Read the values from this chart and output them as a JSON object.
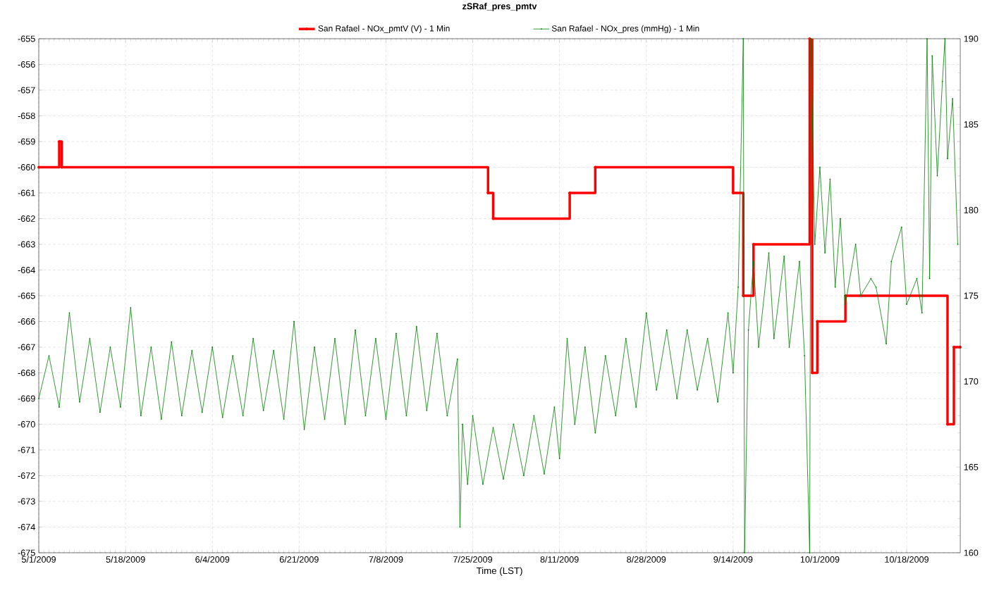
{
  "chart_data": {
    "type": "line",
    "title": "zSRaf_pres_pmtv",
    "xlabel": "Time (LST)",
    "xlim": [
      "2009-05-01",
      "2009-10-28T12:00"
    ],
    "xticks": [
      {
        "value": "2009-05-01",
        "label": "5/1/2009"
      },
      {
        "value": "2009-05-18",
        "label": "5/18/2009"
      },
      {
        "value": "2009-06-04",
        "label": "6/4/2009"
      },
      {
        "value": "2009-06-21",
        "label": "6/21/2009"
      },
      {
        "value": "2009-07-08",
        "label": "7/8/2009"
      },
      {
        "value": "2009-07-25",
        "label": "7/25/2009"
      },
      {
        "value": "2009-08-11",
        "label": "8/11/2009"
      },
      {
        "value": "2009-08-28",
        "label": "8/28/2009"
      },
      {
        "value": "2009-09-14",
        "label": "9/14/2009"
      },
      {
        "value": "2009-10-01",
        "label": "10/1/2009"
      },
      {
        "value": "2009-10-18",
        "label": "10/18/2009"
      }
    ],
    "ylim": [
      -675,
      -655
    ],
    "yticks": [
      -675,
      -674,
      -673,
      -672,
      -671,
      -670,
      -669,
      -668,
      -667,
      -666,
      -665,
      -664,
      -663,
      -662,
      -661,
      -660,
      -659,
      -658,
      -657,
      -656,
      -655
    ],
    "y2lim": [
      160,
      190
    ],
    "y2ticks": [
      160,
      165,
      170,
      175,
      180,
      185,
      190
    ],
    "grid": true,
    "legend": "top",
    "series": [
      {
        "name": "San Rafael - NOx_pmtV (V) - 1 Min",
        "type": "step",
        "color": "#ff0000",
        "marker": "circle",
        "x": [
          "2009-05-01",
          "2009-05-05",
          "2009-05-05T12:00",
          "2009-07-28",
          "2009-07-29",
          "2009-08-13",
          "2009-08-18",
          "2009-09-14",
          "2009-09-16",
          "2009-09-18",
          "2009-09-29",
          "2009-09-29T12:00",
          "2009-09-30T12:00",
          "2009-10-06",
          "2009-10-26",
          "2009-10-27T06:00",
          "2009-10-28T12:00"
        ],
        "values": [
          -660,
          -659,
          -660,
          -661,
          -662,
          -661,
          -660,
          -661,
          -665,
          -663,
          -655,
          -668,
          -666,
          -665,
          -670,
          -667,
          -667
        ]
      },
      {
        "name": "San Rafael - NOx_pres (mmHg) - 1 Min",
        "type": "line",
        "axis": "y2",
        "color": "#008000",
        "marker": "circle",
        "x": [
          "2009-05-01",
          "2009-05-03",
          "2009-05-05",
          "2009-05-07",
          "2009-05-09",
          "2009-05-11",
          "2009-05-13",
          "2009-05-15",
          "2009-05-17",
          "2009-05-19",
          "2009-05-21",
          "2009-05-23",
          "2009-05-25",
          "2009-05-27",
          "2009-05-29",
          "2009-05-31",
          "2009-06-02",
          "2009-06-04",
          "2009-06-06",
          "2009-06-08",
          "2009-06-10",
          "2009-06-12",
          "2009-06-14",
          "2009-06-16",
          "2009-06-18",
          "2009-06-20",
          "2009-06-22",
          "2009-06-24",
          "2009-06-26",
          "2009-06-28",
          "2009-06-30",
          "2009-07-02",
          "2009-07-04",
          "2009-07-06",
          "2009-07-08",
          "2009-07-10",
          "2009-07-12",
          "2009-07-14",
          "2009-07-16",
          "2009-07-18",
          "2009-07-20",
          "2009-07-22",
          "2009-07-22T12:00",
          "2009-07-23",
          "2009-07-24",
          "2009-07-25",
          "2009-07-27",
          "2009-07-29",
          "2009-07-31",
          "2009-08-02",
          "2009-08-04",
          "2009-08-06",
          "2009-08-08",
          "2009-08-10",
          "2009-08-11",
          "2009-08-12T12:00",
          "2009-08-14",
          "2009-08-16",
          "2009-08-18",
          "2009-08-20",
          "2009-08-22",
          "2009-08-24",
          "2009-08-26",
          "2009-08-28",
          "2009-08-30",
          "2009-09-01",
          "2009-09-03",
          "2009-09-05",
          "2009-09-07",
          "2009-09-09",
          "2009-09-11",
          "2009-09-13",
          "2009-09-14",
          "2009-09-15",
          "2009-09-16",
          "2009-09-16T06:00",
          "2009-09-17",
          "2009-09-18",
          "2009-09-19",
          "2009-09-21",
          "2009-09-22",
          "2009-09-24",
          "2009-09-25",
          "2009-09-27",
          "2009-09-28",
          "2009-09-29",
          "2009-09-29T06:00",
          "2009-09-30",
          "2009-10-01",
          "2009-10-02",
          "2009-10-03",
          "2009-10-04",
          "2009-10-05",
          "2009-10-06",
          "2009-10-08",
          "2009-10-09",
          "2009-10-11",
          "2009-10-12",
          "2009-10-14",
          "2009-10-15",
          "2009-10-17",
          "2009-10-18",
          "2009-10-20",
          "2009-10-21",
          "2009-10-22",
          "2009-10-22T12:00",
          "2009-10-23",
          "2009-10-24",
          "2009-10-25",
          "2009-10-25T12:00",
          "2009-10-26",
          "2009-10-27",
          "2009-10-28"
        ],
        "values": [
          169.0,
          171.5,
          168.5,
          174.0,
          168.8,
          172.5,
          168.2,
          172.0,
          168.5,
          174.3,
          168.0,
          172.0,
          167.8,
          172.3,
          168.0,
          171.8,
          168.2,
          172.0,
          167.9,
          171.5,
          168.0,
          172.5,
          168.3,
          171.8,
          167.8,
          173.5,
          167.2,
          172.0,
          167.8,
          172.5,
          167.5,
          173.0,
          168.0,
          172.5,
          167.8,
          172.8,
          168.0,
          173.2,
          168.3,
          172.8,
          168.0,
          171.3,
          161.5,
          167.5,
          164.0,
          168.0,
          164.0,
          167.3,
          164.3,
          167.5,
          164.5,
          168.0,
          164.6,
          168.5,
          165.5,
          172.5,
          167.5,
          172.0,
          167.0,
          171.5,
          168.0,
          172.5,
          168.5,
          174.0,
          169.5,
          173.0,
          169.0,
          173.0,
          169.5,
          172.5,
          168.8,
          174.0,
          170.5,
          175.5,
          190,
          160,
          173.0,
          177.0,
          172.0,
          177.5,
          172.5,
          177.3,
          172.0,
          177.0,
          171.5,
          160,
          190,
          178.0,
          182.5,
          177.5,
          181.8,
          175.5,
          179.5,
          174.5,
          178.0,
          175.0,
          176.0,
          175.5,
          172.2,
          177.0,
          179.0,
          174.5,
          176.0,
          174.0,
          190,
          176.0,
          189.0,
          182.0,
          187.5,
          190,
          183.0,
          186.5,
          178.0
        ]
      }
    ]
  }
}
